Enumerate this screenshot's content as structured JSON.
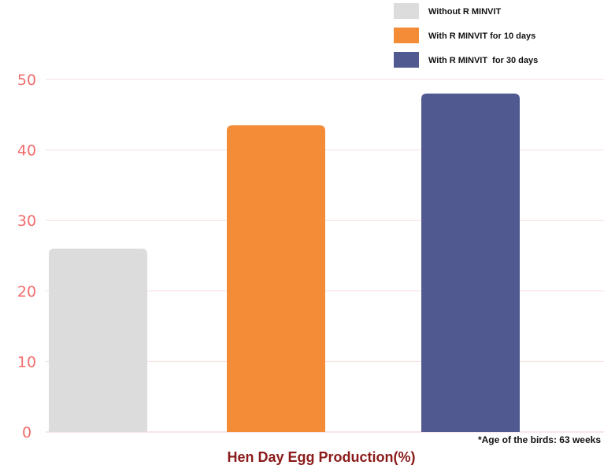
{
  "chart_data": {
    "type": "bar",
    "categories": [
      "Without R MINVIT",
      "With R MINVIT for 10 days",
      "With R MINVIT  for 30 days"
    ],
    "values": [
      26,
      43.5,
      48
    ],
    "title": "",
    "xlabel": "Hen Day Egg Production(%)",
    "ylabel": "",
    "ylim": [
      0,
      50
    ],
    "yticks": [
      0,
      10,
      20,
      30,
      40,
      50
    ],
    "grid": true,
    "legend_position": "top-right",
    "legend": [
      {
        "label": "Without R MINVIT",
        "color": "#dcdcdc"
      },
      {
        "label": "With R MINVIT for 10 days",
        "color": "#f48b36"
      },
      {
        "label": "With R MINVIT  for 30 days",
        "color": "#515991"
      }
    ],
    "footnote": "*Age of the birds: 63 weeks"
  },
  "colors": {
    "tick_labels": "#f26d6d",
    "gridline": "#f7dede",
    "xlabel": "#8b1a1a"
  }
}
